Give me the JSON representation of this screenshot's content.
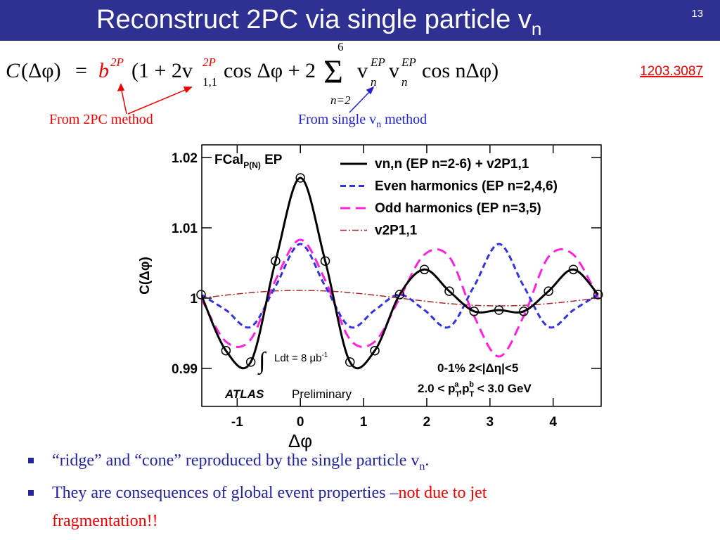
{
  "header": {
    "title": "Reconstruct 2PC via single particle v",
    "title_sub": "n",
    "page": "13"
  },
  "formula": [
    "C",
    "(Δφ)",
    "=",
    "b",
    "2P",
    "(1 + 2v",
    "2P",
    "1,1",
    "cos Δφ + 2",
    "Σ",
    "6",
    "n=2",
    "v",
    "EP",
    "n",
    "v",
    "EP",
    "n",
    "cos nΔφ)"
  ],
  "reference": "1203.3087",
  "notes": {
    "left": "From 2PC method",
    "right": [
      "From single v",
      "n",
      " method"
    ]
  },
  "chart_data": {
    "type": "line",
    "x_label": "Δφ",
    "y_label": "C(Δφ)",
    "annotations": [
      "FCal",
      "P(N)",
      " EP",
      "∫",
      "Ldt = 8 μb",
      "-1",
      "ATLAS",
      "Preliminary",
      "0-1% 2<|Δη|<5",
      "2.0 < p",
      "T",
      "a",
      ",p",
      "T",
      "b",
      " < 3.0 GeV"
    ],
    "x": [
      -1.571,
      -1.178,
      -0.785,
      -0.393,
      0,
      0.393,
      0.785,
      1.178,
      1.571,
      1.963,
      2.356,
      2.749,
      3.142,
      3.534,
      3.927,
      4.32,
      4.712
    ],
    "series": [
      {
        "name": "vn,n (EP n=2-6) + v2P1,1",
        "color": "#000000",
        "dash": "solid",
        "marker": "circle",
        "values": [
          1.0005,
          0.99253,
          0.99091,
          1.00528,
          1.0171,
          1.00528,
          0.99091,
          0.99253,
          1.0005,
          1.00407,
          1.00099,
          0.99812,
          0.9983,
          0.99812,
          1.00099,
          1.00407,
          1.0005
        ]
      },
      {
        "name": "Even harmonics (EP n=2,4,6)",
        "color": "#3333dd",
        "dash": "dashed",
        "values": [
          1.0005,
          0.9983,
          0.9959,
          1.0017,
          1.0077,
          1.0017,
          0.9959,
          0.9983,
          1.0005,
          0.9983,
          0.9959,
          1.0017,
          1.0077,
          1.0017,
          0.9959,
          0.9983,
          1.0005
        ]
      },
      {
        "name": "Odd harmonics (EP n=3,5)",
        "color": "#ff22dd",
        "dash": "longdash",
        "values": [
          1.0,
          0.99381,
          0.99413,
          1.00256,
          1.0083,
          1.00256,
          0.99413,
          0.99381,
          1.0,
          1.00619,
          1.00587,
          0.99744,
          0.9917,
          0.99744,
          1.00587,
          1.00619,
          1.0
        ]
      },
      {
        "name": "v2P1,1",
        "color": "#a52a2a",
        "dash": "dashdot",
        "values": [
          1.0,
          1.00042,
          1.00078,
          1.00102,
          1.0011,
          1.00102,
          1.00078,
          1.00042,
          1.0,
          0.99958,
          0.99922,
          0.99898,
          0.9989,
          0.99898,
          0.99922,
          0.99958,
          1.0
        ]
      }
    ],
    "xlim": [
      -1.56,
      4.76
    ],
    "ylim": [
      0.9846,
      1.0218
    ],
    "xticks": [
      -1,
      0,
      1,
      2,
      3,
      4
    ],
    "yticks": [
      0.99,
      1,
      1.01,
      1.02
    ]
  },
  "bullets": [
    [
      "“ridge” and “cone” reproduced by the single particle v",
      "n",
      "."
    ],
    [
      "They are consequences of global event properties –",
      "not due to jet",
      "fragmentation!!"
    ]
  ]
}
